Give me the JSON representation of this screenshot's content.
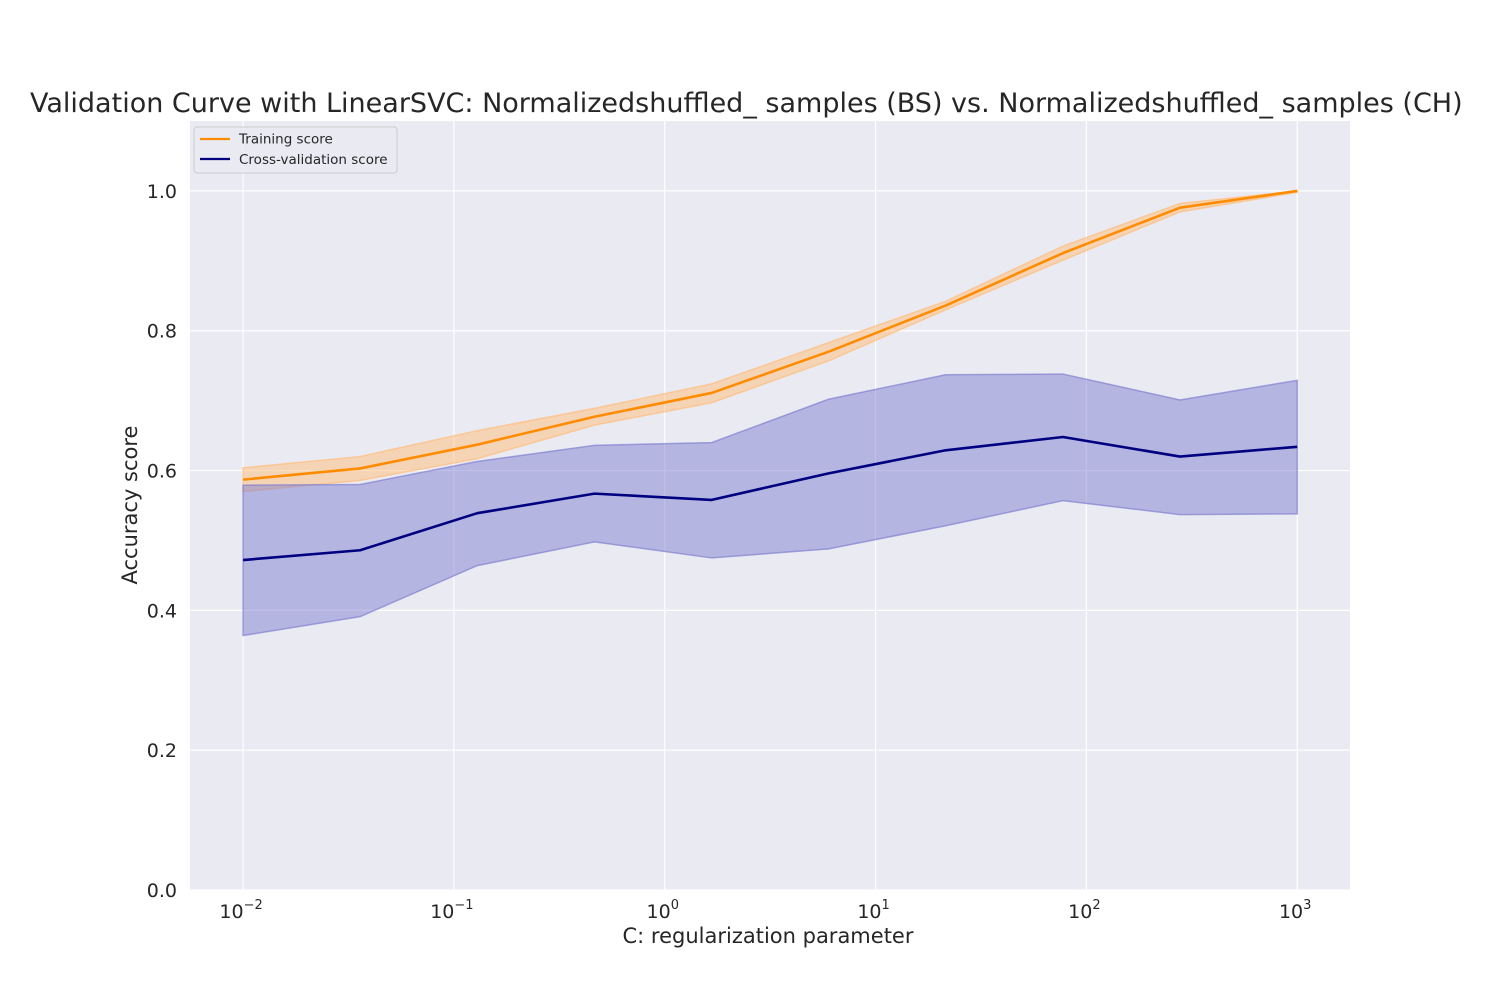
{
  "chart_data": {
    "type": "line",
    "title": "Validation Curve with LinearSVC: Normalizedshuffled_ samples (BS) vs. Normalizedshuffled_ samples (CH)",
    "xlabel": "C: regularization parameter",
    "ylabel": "Accuracy score",
    "xscale": "log",
    "xlim": [
      0.0056,
      1780
    ],
    "ylim": [
      0.0,
      1.1
    ],
    "x_ticks": [
      {
        "value": 0.01,
        "base": "10",
        "exp": "−2"
      },
      {
        "value": 0.1,
        "base": "10",
        "exp": "−1"
      },
      {
        "value": 1,
        "base": "10",
        "exp": "0"
      },
      {
        "value": 10,
        "base": "10",
        "exp": "1"
      },
      {
        "value": 100,
        "base": "10",
        "exp": "2"
      },
      {
        "value": 1000,
        "base": "10",
        "exp": "3"
      }
    ],
    "y_ticks": [
      {
        "value": 0.0,
        "label": "0.0"
      },
      {
        "value": 0.2,
        "label": "0.2"
      },
      {
        "value": 0.4,
        "label": "0.4"
      },
      {
        "value": 0.6,
        "label": "0.6"
      },
      {
        "value": 0.8,
        "label": "0.8"
      },
      {
        "value": 1.0,
        "label": "1.0"
      }
    ],
    "grid": true,
    "legend_position": "top-left",
    "x": [
      0.01,
      0.0359,
      0.129,
      0.464,
      1.67,
      5.99,
      21.5,
      77.4,
      278,
      1000
    ],
    "series": [
      {
        "name": "Training score",
        "color": "#ff8c00",
        "band_color": "#ffbe7a",
        "values": [
          0.587,
          0.603,
          0.637,
          0.677,
          0.711,
          0.77,
          0.836,
          0.911,
          0.976,
          1.0
        ],
        "lower": [
          0.57,
          0.586,
          0.617,
          0.665,
          0.697,
          0.757,
          0.83,
          0.901,
          0.97,
          0.998
        ],
        "upper": [
          0.604,
          0.62,
          0.657,
          0.689,
          0.724,
          0.783,
          0.842,
          0.921,
          0.982,
          1.0
        ]
      },
      {
        "name": "Cross-validation score",
        "color": "#000080",
        "band_color": "#8080d0",
        "values": [
          0.472,
          0.486,
          0.539,
          0.567,
          0.558,
          0.596,
          0.629,
          0.648,
          0.62,
          0.634
        ],
        "lower": [
          0.364,
          0.391,
          0.464,
          0.498,
          0.475,
          0.488,
          0.521,
          0.557,
          0.537,
          0.538
        ],
        "upper": [
          0.579,
          0.58,
          0.613,
          0.636,
          0.64,
          0.702,
          0.737,
          0.738,
          0.701,
          0.729
        ]
      }
    ]
  }
}
